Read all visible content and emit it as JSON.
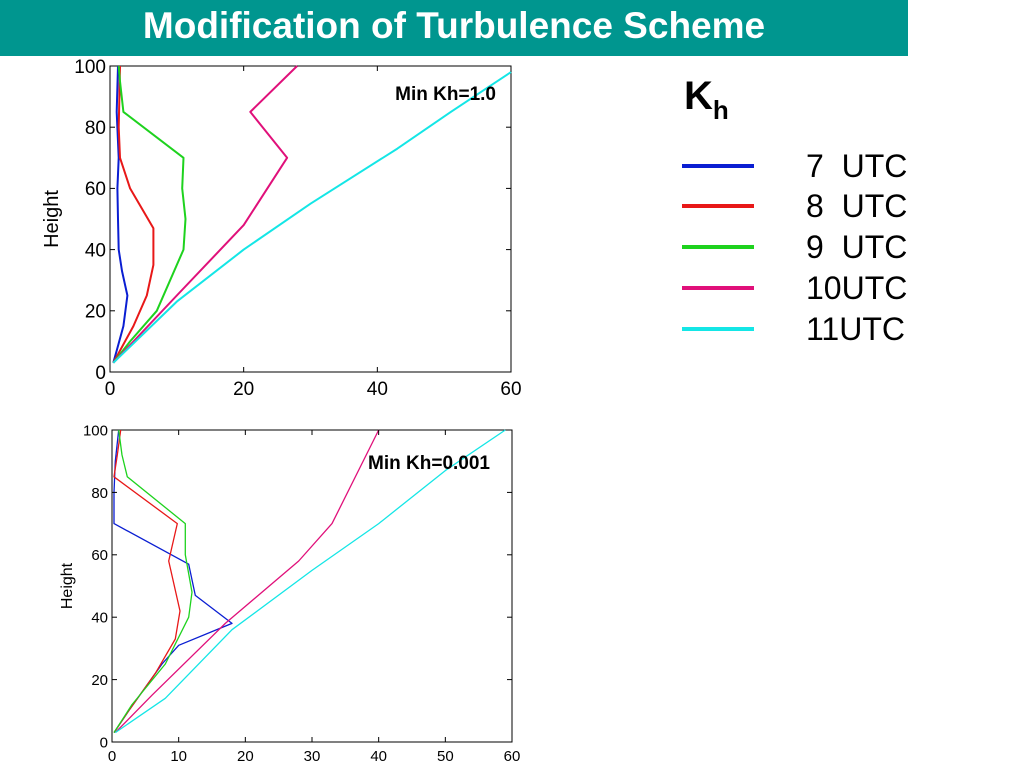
{
  "page": {
    "title": "Modification of Turbulence Scheme"
  },
  "legend": {
    "title_main": "K",
    "title_sub": "h",
    "items": [
      {
        "label": "7  UTC",
        "color": "#0a1ed2"
      },
      {
        "label": "8  UTC",
        "color": "#e81818"
      },
      {
        "label": "9  UTC",
        "color": "#1ed21e"
      },
      {
        "label": "10UTC",
        "color": "#e0107a"
      },
      {
        "label": "11UTC",
        "color": "#14e6e6"
      }
    ]
  },
  "chart_data": [
    {
      "type": "line",
      "annotation": "Min Kh=1.0",
      "xlabel": "",
      "ylabel": "Height",
      "xlim": [
        0,
        60
      ],
      "ylim": [
        0,
        100
      ],
      "xticks": [
        0,
        20,
        40,
        60
      ],
      "yticks": [
        0,
        20,
        40,
        60,
        80,
        100
      ],
      "grid": false,
      "series": [
        {
          "color": "#0a1ed2",
          "x": [
            0.5,
            1.0,
            2.0,
            2.6,
            1.8,
            1.3,
            1.2,
            1.1,
            1.3,
            1.0,
            1.2
          ],
          "y": [
            3,
            7,
            15,
            25,
            33,
            40,
            50,
            60,
            70,
            85,
            100
          ]
        },
        {
          "color": "#e81818",
          "x": [
            0.5,
            1.5,
            3.5,
            5.5,
            6.5,
            6.5,
            3.0,
            1.5,
            1.3,
            1.4,
            1.5
          ],
          "y": [
            3,
            7,
            15,
            25,
            35,
            47,
            60,
            70,
            80,
            90,
            100
          ]
        },
        {
          "color": "#1ed21e",
          "x": [
            0.5,
            3.0,
            7.0,
            11.0,
            11.3,
            10.8,
            11.0,
            2.0,
            1.5,
            1.3
          ],
          "y": [
            3,
            10,
            20,
            40,
            50,
            60,
            70,
            85,
            95,
            100
          ]
        },
        {
          "color": "#e0107a",
          "x": [
            0.5,
            10.0,
            20.0,
            26.5,
            21.0,
            28.0
          ],
          "y": [
            3,
            25,
            48,
            70,
            85,
            100
          ]
        },
        {
          "color": "#14e6e6",
          "x": [
            0.5,
            10.0,
            20.0,
            30.0,
            43.0,
            51.0,
            60.0
          ],
          "y": [
            3,
            23,
            40,
            55,
            73,
            85,
            98
          ]
        }
      ]
    },
    {
      "type": "line",
      "annotation": "Min Kh=0.001",
      "xlabel": "",
      "ylabel": "Height",
      "xlim": [
        0,
        60
      ],
      "ylim": [
        0,
        100
      ],
      "xticks": [
        0,
        10,
        20,
        30,
        40,
        50,
        60
      ],
      "yticks": [
        0,
        20,
        40,
        60,
        80,
        100
      ],
      "grid": false,
      "series": [
        {
          "color": "#0a1ed2",
          "x": [
            0.3,
            2.5,
            7.5,
            10.0,
            18.0,
            12.5,
            11.5,
            0.3,
            0.3,
            0.5,
            1.0
          ],
          "y": [
            3,
            10,
            25,
            31,
            38,
            47,
            57,
            70,
            80,
            90,
            100
          ]
        },
        {
          "color": "#e81818",
          "x": [
            0.3,
            2.5,
            6.5,
            9.5,
            10.2,
            8.5,
            9.8,
            0.3,
            0.8,
            1.3
          ],
          "y": [
            3,
            10,
            22,
            33,
            42,
            58,
            70,
            85,
            92,
            100
          ]
        },
        {
          "color": "#1ed21e",
          "x": [
            0.3,
            3.0,
            8.0,
            11.5,
            12.0,
            11.0,
            11.0,
            2.3,
            1.5,
            1.0
          ],
          "y": [
            3,
            12,
            25,
            40,
            48,
            60,
            70,
            85,
            92,
            100
          ]
        },
        {
          "color": "#e0107a",
          "x": [
            0.5,
            6.0,
            17.0,
            28.0,
            33.0,
            40.0
          ],
          "y": [
            3,
            15,
            38,
            58,
            70,
            100
          ]
        },
        {
          "color": "#14e6e6",
          "x": [
            0.5,
            8.0,
            18.0,
            30.0,
            40.0,
            50.0,
            59.0
          ],
          "y": [
            3,
            14,
            36,
            55,
            70,
            87,
            100
          ]
        }
      ]
    }
  ]
}
